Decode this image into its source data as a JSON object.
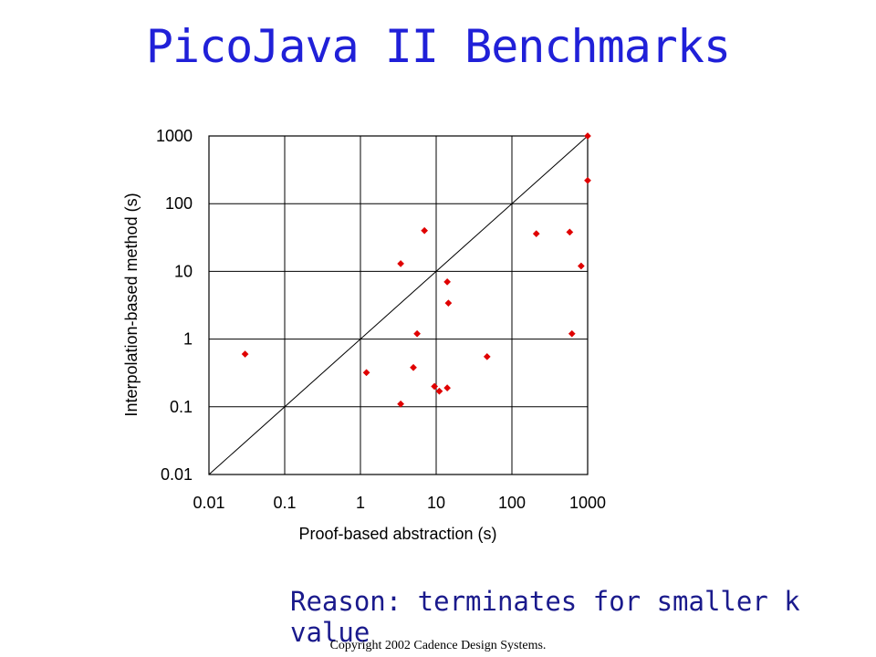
{
  "slide": {
    "title": "PicoJava II Benchmarks",
    "reason": "Reason: terminates for smaller k value",
    "copyright": "Copyright 2002 Cadence Design Systems."
  },
  "chart_data": {
    "type": "scatter",
    "xlabel": "Proof-based abstraction (s)",
    "ylabel": "Interpolation-based method (s)",
    "xscale": "log",
    "yscale": "log",
    "xlim": [
      0.01,
      1000
    ],
    "ylim": [
      0.01,
      1000
    ],
    "ticks": [
      0.01,
      0.1,
      1,
      10,
      100,
      1000
    ],
    "tick_labels": [
      "0.01",
      "0.1",
      "1",
      "10",
      "100",
      "1000"
    ],
    "grid": true,
    "diagonal": "y = x",
    "marker_color": "#e00000",
    "points": [
      {
        "x": 0.03,
        "y": 0.6
      },
      {
        "x": 1.2,
        "y": 0.32
      },
      {
        "x": 3.4,
        "y": 13
      },
      {
        "x": 3.4,
        "y": 0.11
      },
      {
        "x": 5.0,
        "y": 0.38
      },
      {
        "x": 5.6,
        "y": 1.2
      },
      {
        "x": 7.0,
        "y": 40
      },
      {
        "x": 9.5,
        "y": 0.2
      },
      {
        "x": 11,
        "y": 0.17
      },
      {
        "x": 14,
        "y": 0.19
      },
      {
        "x": 14,
        "y": 7
      },
      {
        "x": 14.5,
        "y": 3.4
      },
      {
        "x": 47,
        "y": 0.55
      },
      {
        "x": 210,
        "y": 36
      },
      {
        "x": 580,
        "y": 38
      },
      {
        "x": 620,
        "y": 1.2
      },
      {
        "x": 820,
        "y": 12
      },
      {
        "x": 1000,
        "y": 1000
      },
      {
        "x": 1000,
        "y": 220
      }
    ]
  }
}
